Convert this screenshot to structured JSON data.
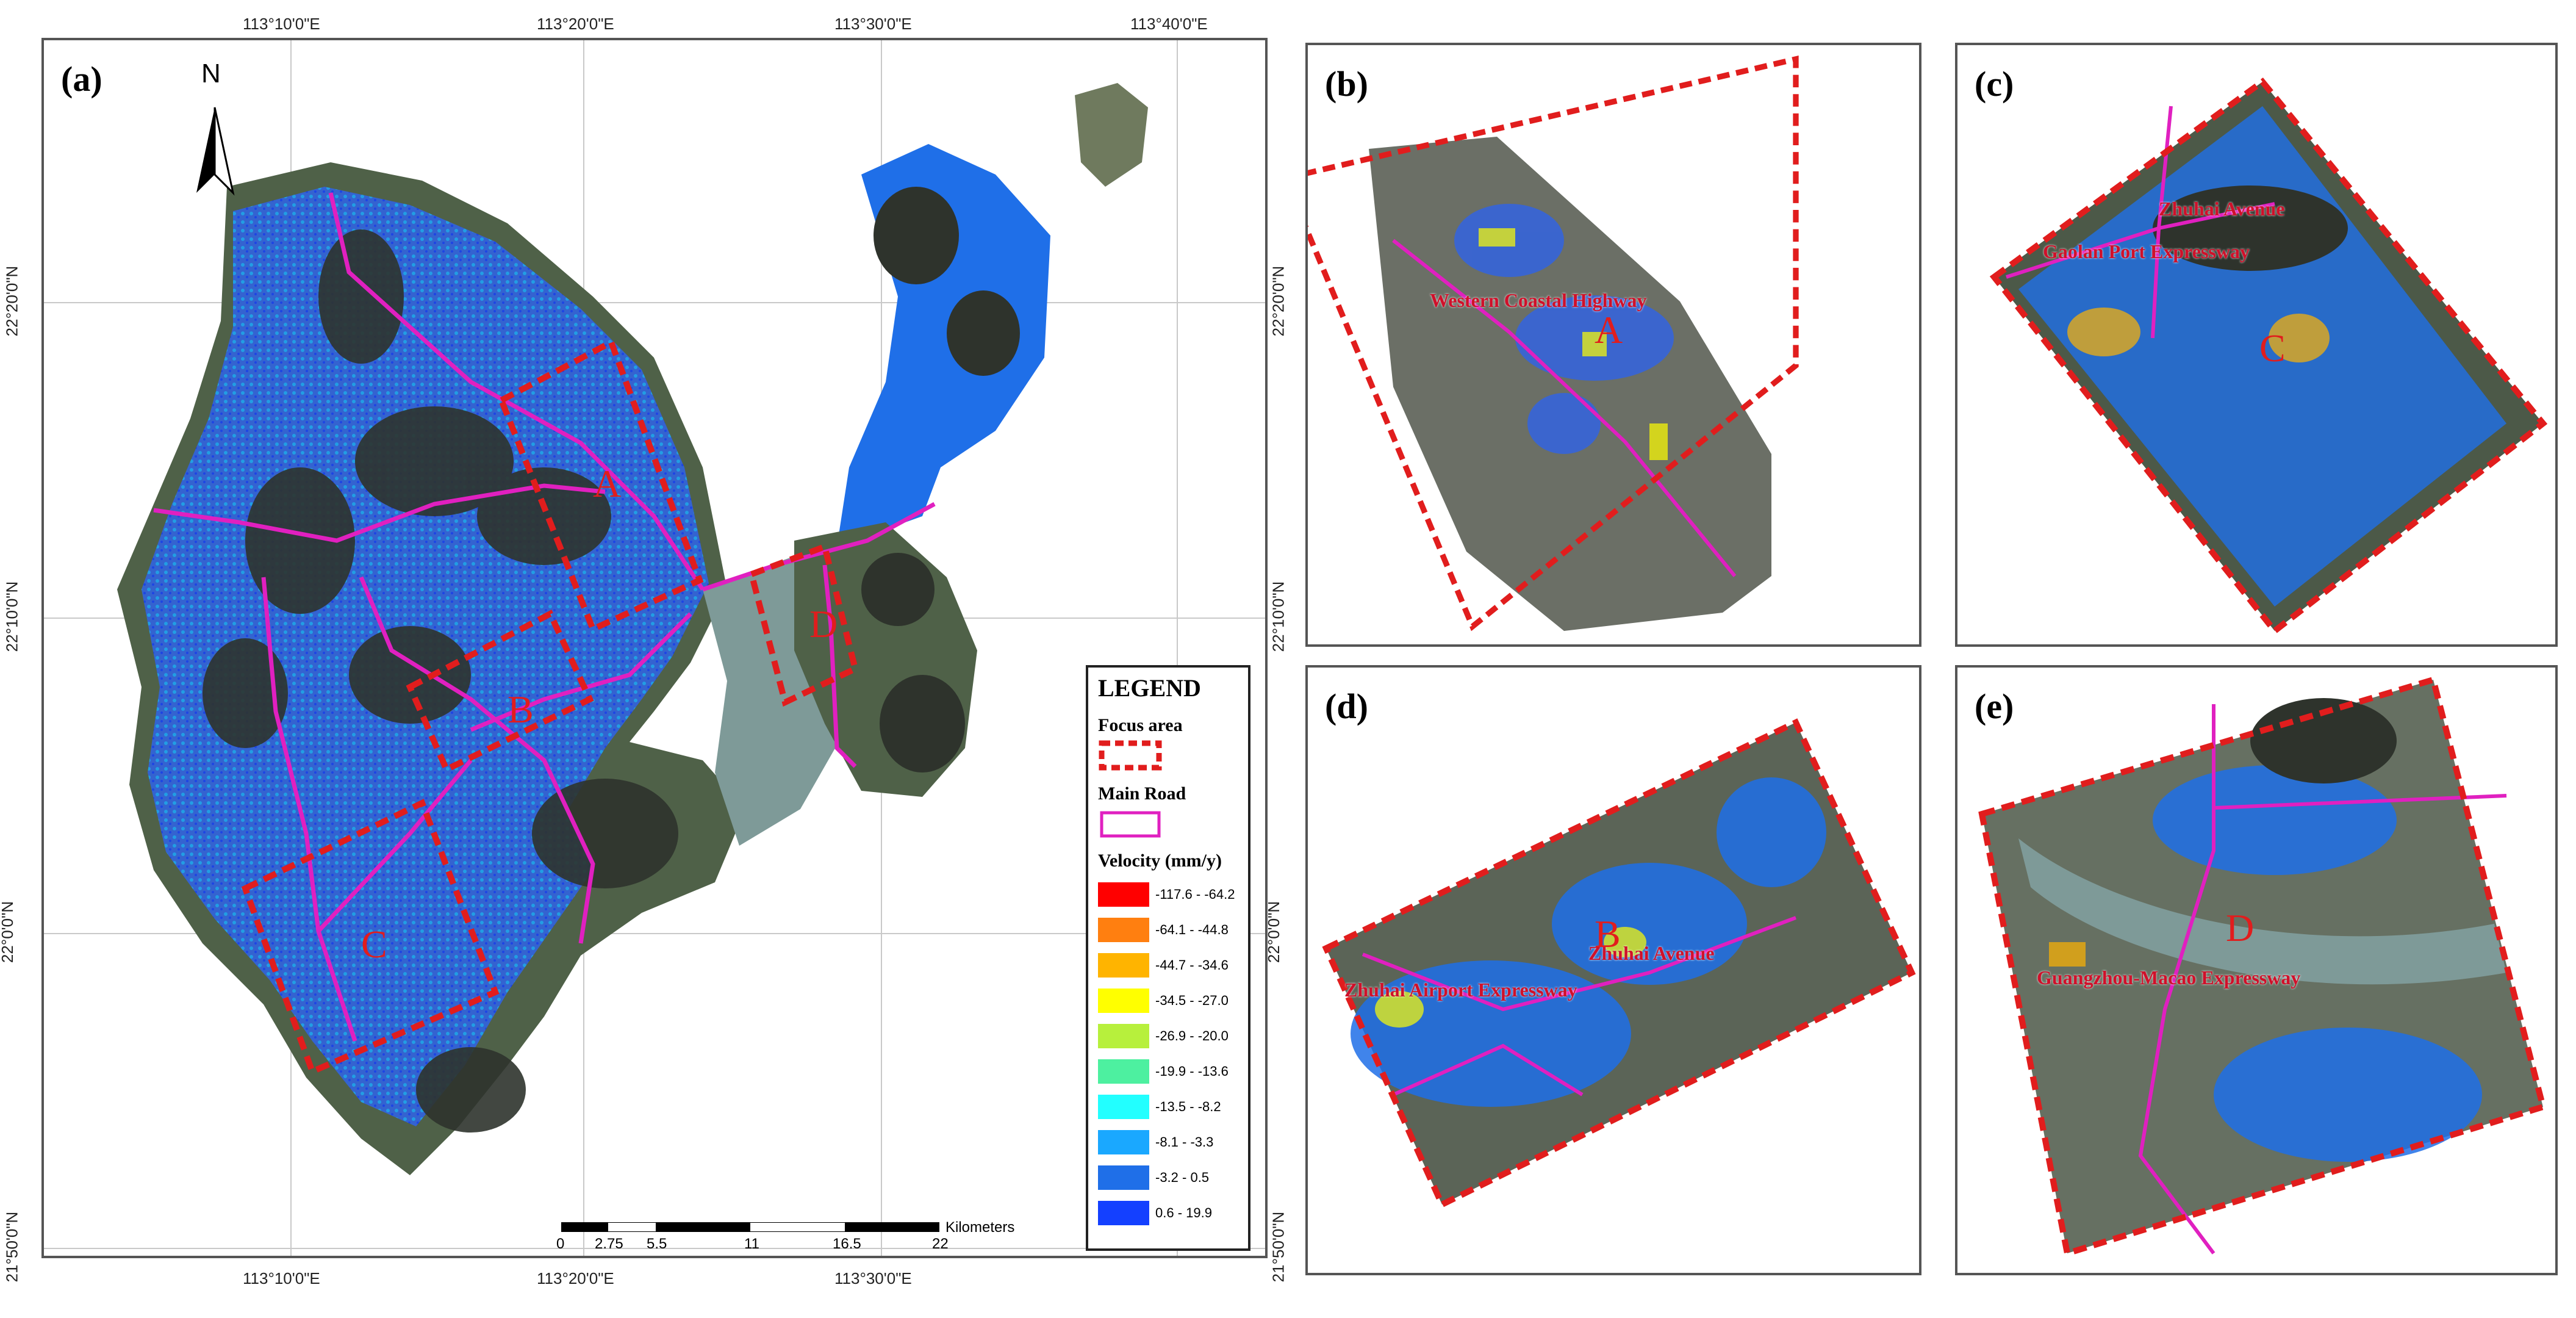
{
  "panels": {
    "a": "(a)",
    "b": "(b)",
    "c": "(c)",
    "d": "(d)",
    "e": "(e)"
  },
  "north_arrow": "N",
  "graticule": {
    "top": [
      "113°10'0\"E",
      "113°20'0\"E",
      "113°30'0\"E",
      "113°40'0\"E"
    ],
    "bottom": [
      "113°10'0\"E",
      "113°20'0\"E",
      "113°30'0\"E"
    ],
    "left": [
      "22°20'0\"N",
      "22°10'0\"N",
      "22°0'0\"N",
      "21°50'0\"N"
    ],
    "right": [
      "22°20'0\"N",
      "22°10'0\"N",
      "22°0'0\"N",
      "21°50'0\"N"
    ]
  },
  "focus_labels": {
    "A": "A",
    "B": "B",
    "C": "C",
    "D": "D"
  },
  "legend": {
    "title": "LEGEND",
    "focus_area": "Focus area",
    "main_road": "Main Road",
    "velocity": "Velocity (mm/y)",
    "classes": [
      {
        "label": "-117.6 - -64.2",
        "color": "#ff0000"
      },
      {
        "label": "-64.1 - -44.8",
        "color": "#ff7f10"
      },
      {
        "label": "-44.7 - -34.6",
        "color": "#ffb400"
      },
      {
        "label": "-34.5 - -27.0",
        "color": "#ffff00"
      },
      {
        "label": "-26.9 - -20.0",
        "color": "#b7f03c"
      },
      {
        "label": "-19.9 - -13.6",
        "color": "#4df0a0"
      },
      {
        "label": "-13.5 - -8.2",
        "color": "#22ffff"
      },
      {
        "label": "-8.1 - -3.3",
        "color": "#1aa8ff"
      },
      {
        "label": "-3.2 - 0.5",
        "color": "#1f6fe8"
      },
      {
        "label": "0.6 - 19.9",
        "color": "#1440ff"
      }
    ]
  },
  "scale": {
    "unit": "Kilometers",
    "ticks": [
      "0",
      "2.75",
      "5.5",
      "11",
      "16.5",
      "22"
    ]
  },
  "roads": {
    "b": "Western Coastal Highway",
    "c1": "Zhuhai Avenue",
    "c2": "Gaolan Port Expressway",
    "d1": "Zhuhai Airport Expressway",
    "d2": "Zhuhai Avenue",
    "e": "Guangzhou-Macao Expressway"
  },
  "colors": {
    "focus": "#e11d1d",
    "road": "#e020c0",
    "land": "#4a5a46",
    "water": "#7e9a98"
  }
}
